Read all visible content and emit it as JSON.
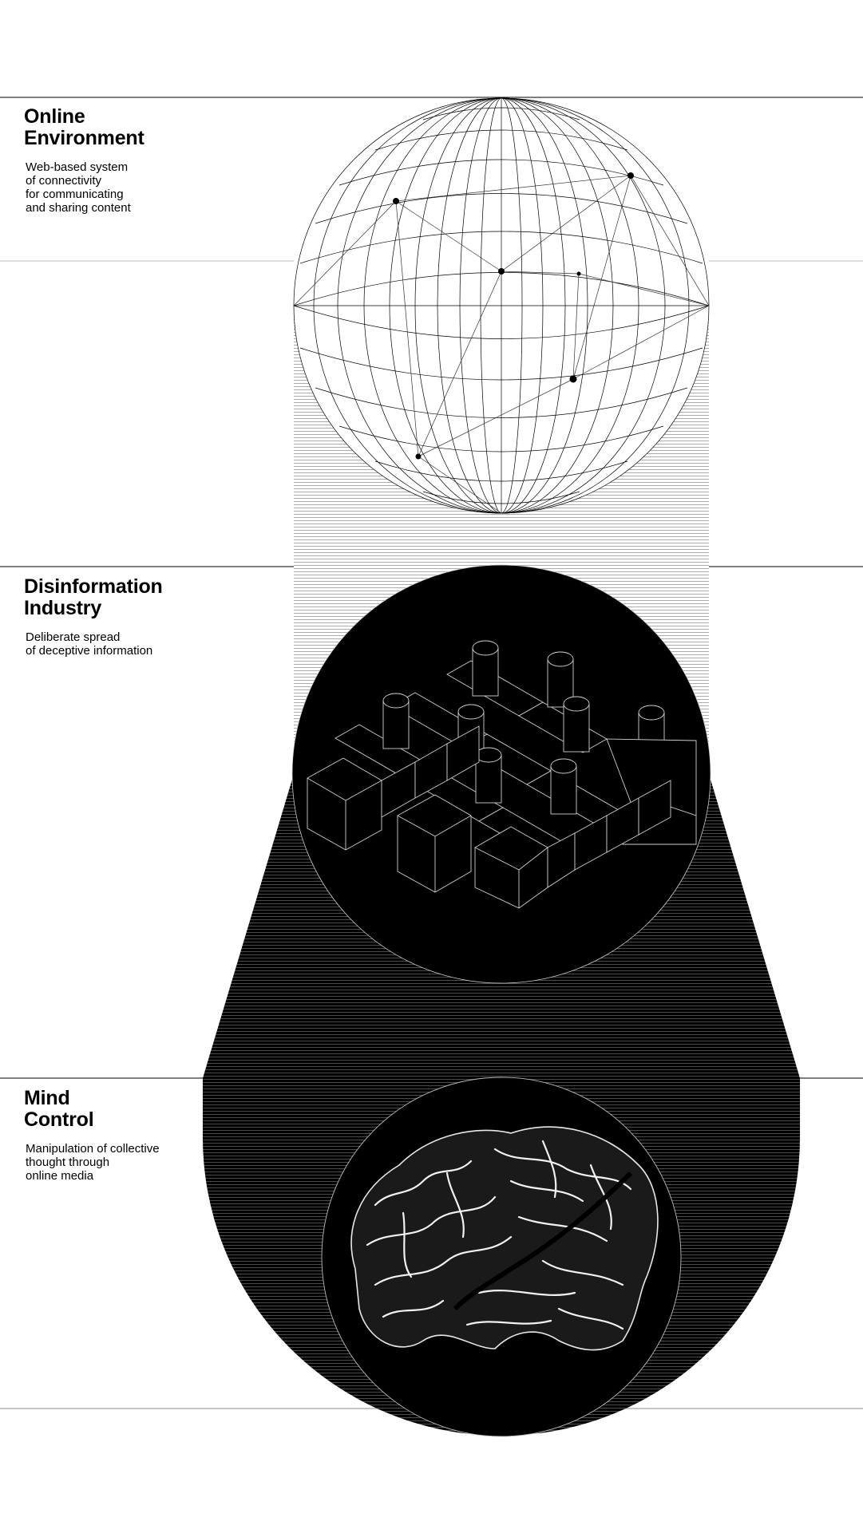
{
  "sections": [
    {
      "title_lines": [
        "Online",
        "Environment"
      ],
      "desc_lines": [
        "Web-based system",
        "of connectivity",
        "for communicating",
        "and sharing content"
      ]
    },
    {
      "title_lines": [
        "Disinformation",
        "Industry"
      ],
      "desc_lines": [
        "Deliberate spread",
        "of deceptive information"
      ]
    },
    {
      "title_lines": [
        "Mind",
        "Control"
      ],
      "desc_lines": [
        "Manipulation of collective",
        "thought through",
        "online media"
      ]
    }
  ],
  "colors": {
    "background": "#ffffff",
    "ink": "#000000",
    "hatch_light": "#9a9a9a",
    "hatch_dark": "#5a5a5a"
  },
  "icons": [
    "globe-wireframe-icon",
    "factory-isometric-icon",
    "brain-icon"
  ]
}
